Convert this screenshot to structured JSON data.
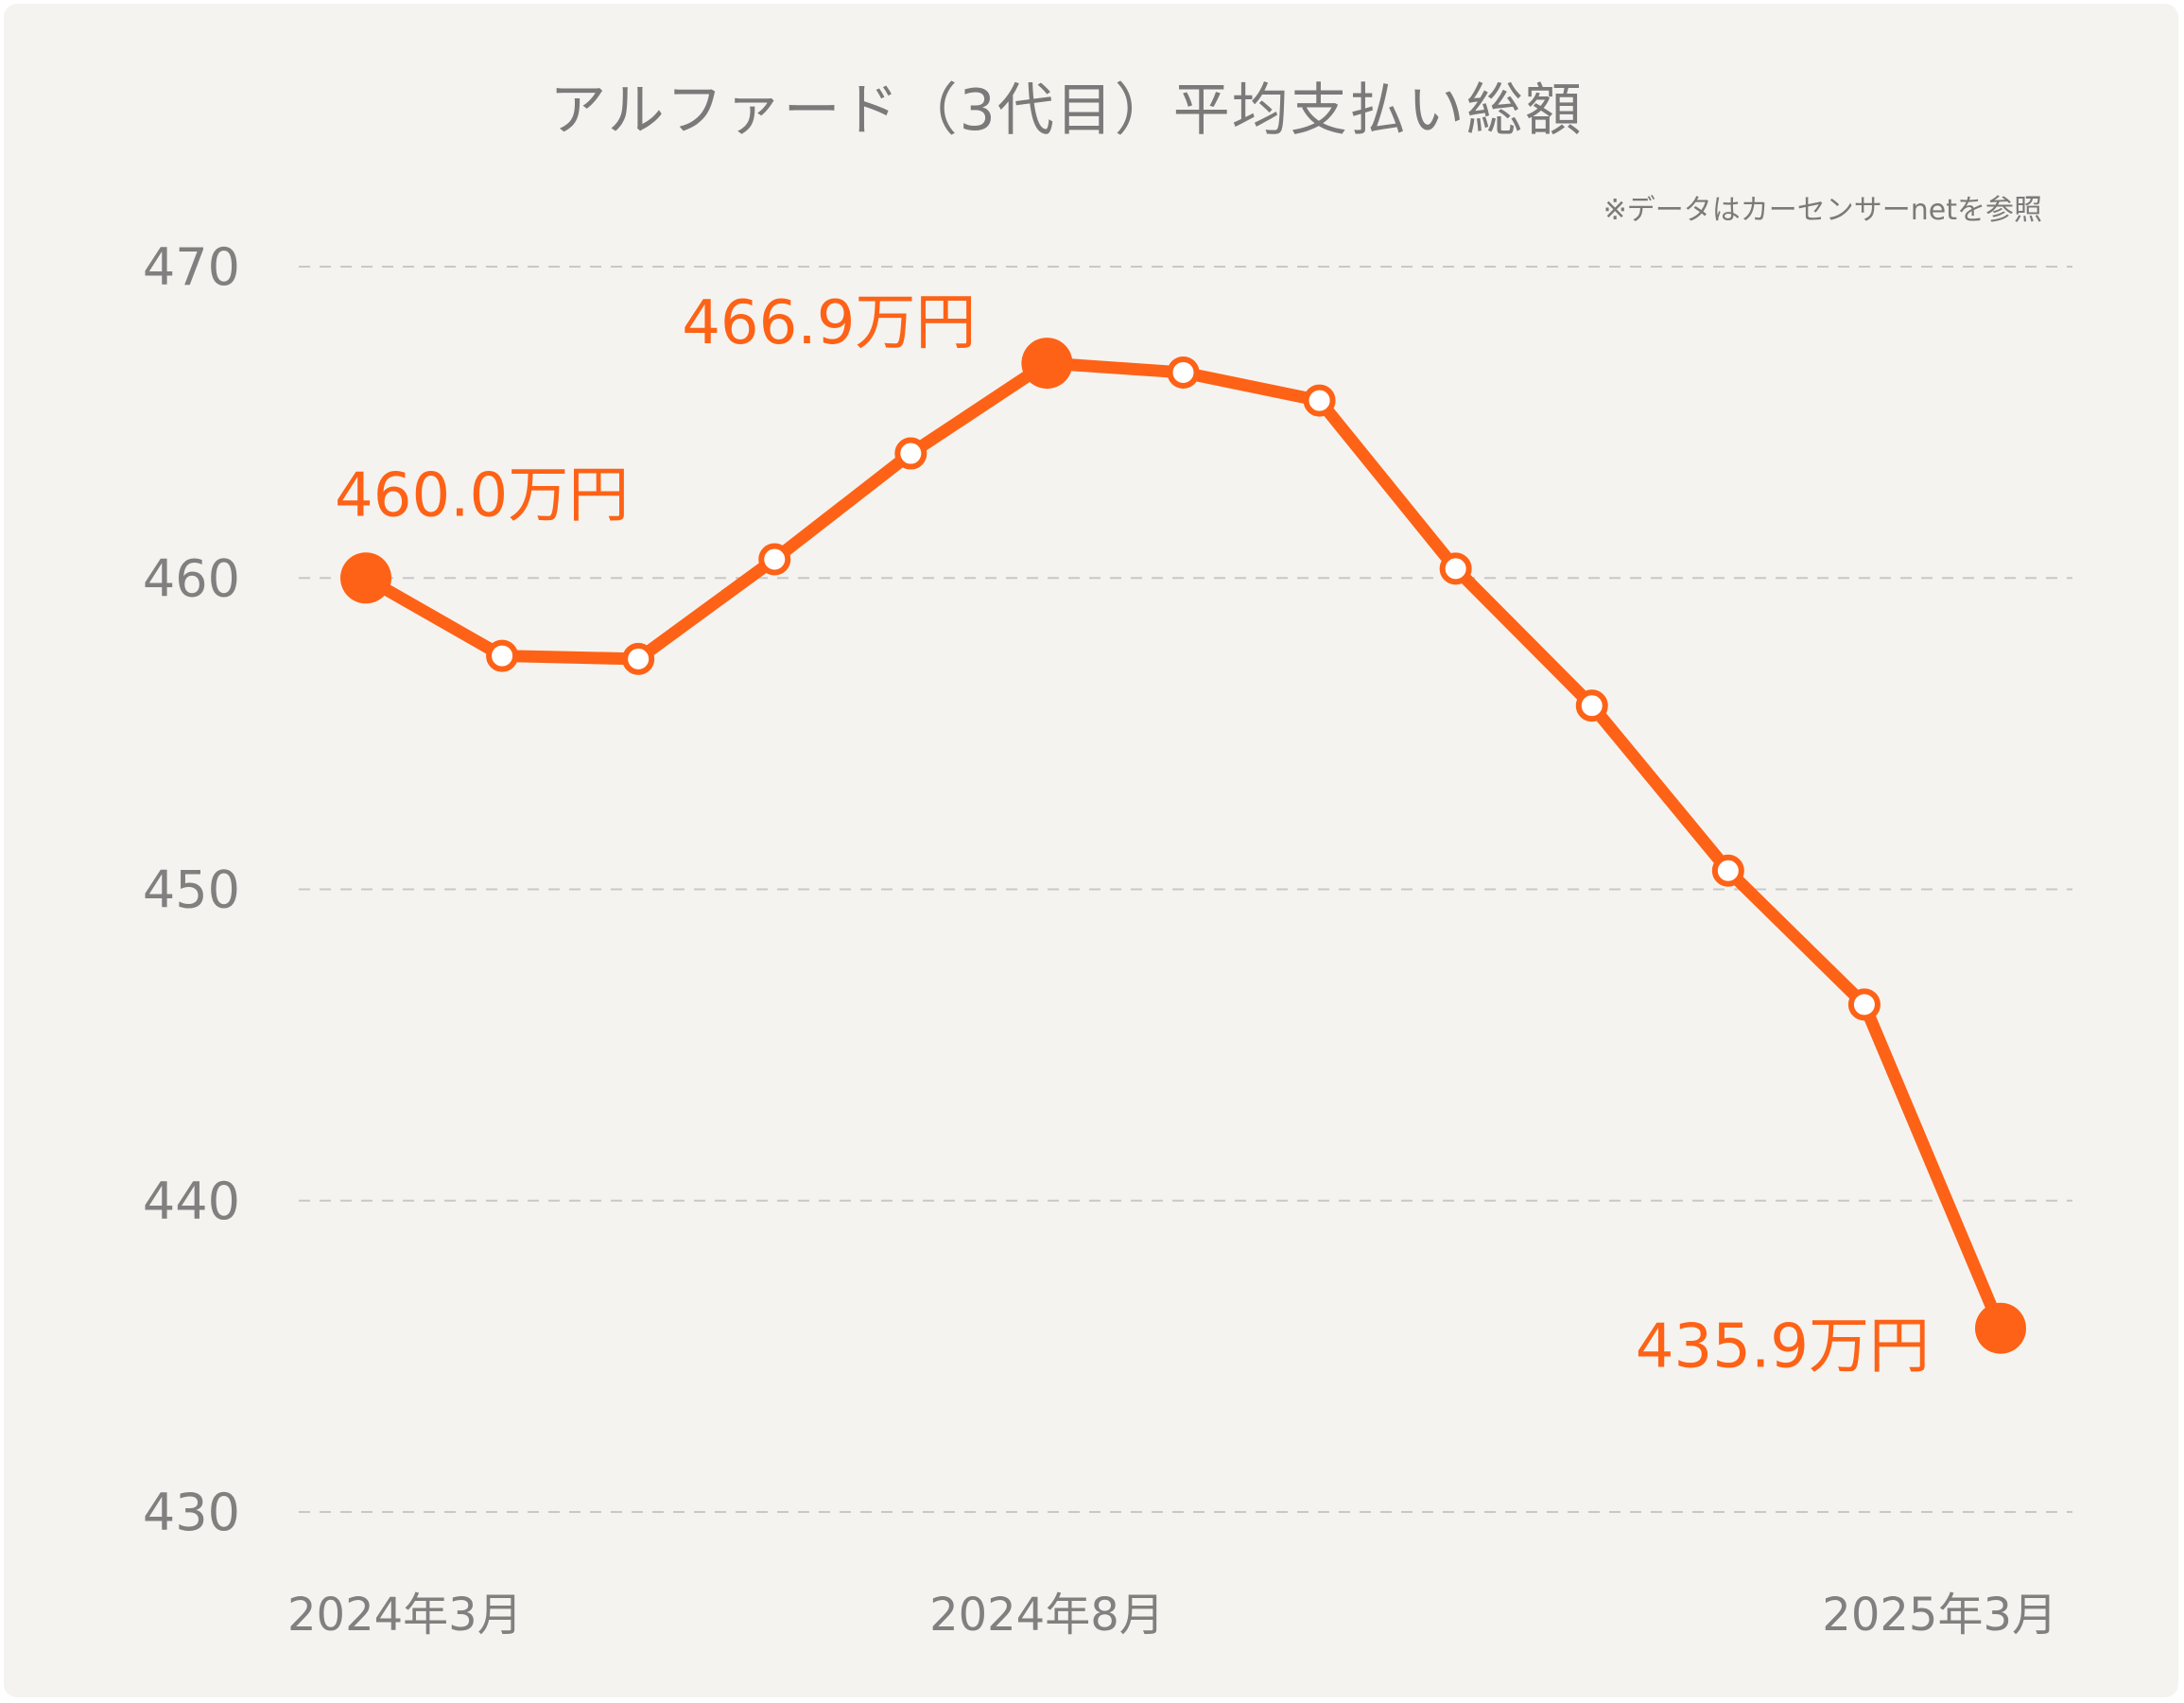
{
  "chart_data": {
    "type": "line",
    "title": "アルファード（3代目）平均支払い総額",
    "note": "※データはカーセンサーnetを参照",
    "xlabel": "",
    "ylabel": "",
    "ylim": [
      430,
      470
    ],
    "yticks": [
      470,
      460,
      450,
      440,
      430
    ],
    "grid": true,
    "color": "#fe6216",
    "x_tick_labels": [
      {
        "index": 0,
        "label": "2024年3月"
      },
      {
        "index": 5,
        "label": "2024年8月"
      },
      {
        "index": 12,
        "label": "2025年3月"
      }
    ],
    "series": [
      {
        "name": "平均支払い総額",
        "values": [
          460.0,
          457.5,
          457.4,
          460.6,
          464.0,
          466.9,
          466.6,
          465.7,
          460.3,
          455.9,
          450.6,
          446.3,
          435.9
        ]
      }
    ],
    "annotations": [
      {
        "index": 0,
        "label": "460.0万円"
      },
      {
        "index": 5,
        "label": "466.9万円"
      },
      {
        "index": 12,
        "label": "435.9万円"
      }
    ]
  }
}
